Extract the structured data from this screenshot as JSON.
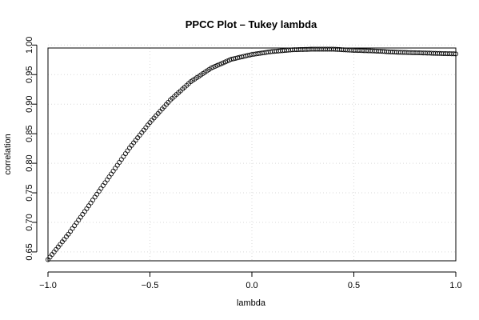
{
  "chart_data": {
    "type": "scatter",
    "title": "PPCC Plot – Tukey lambda",
    "xlabel": "lambda",
    "ylabel": "correlation",
    "xlim": [
      -1.0,
      1.0
    ],
    "ylim": [
      0.635,
      0.995
    ],
    "xticks": [
      -1.0,
      -0.5,
      0.0,
      0.5,
      1.0
    ],
    "xtick_labels": [
      "−1.0",
      "−0.5",
      "0.0",
      "0.5",
      "1.0"
    ],
    "yticks": [
      0.65,
      0.7,
      0.75,
      0.8,
      0.85,
      0.9,
      0.95,
      1.0
    ],
    "ytick_labels": [
      "0.65",
      "0.70",
      "0.75",
      "0.80",
      "0.85",
      "0.90",
      "0.95",
      "1.00"
    ],
    "grid": true,
    "marker": "open-circle",
    "series": [
      {
        "x": [
          -1.0,
          -0.9,
          -0.8,
          -0.7,
          -0.6,
          -0.5,
          -0.4,
          -0.3,
          -0.2,
          -0.1,
          0.0,
          0.1,
          0.2,
          0.3,
          0.4,
          0.5,
          0.6,
          0.7,
          0.8,
          0.9,
          1.0
        ],
        "y": [
          0.637,
          0.68,
          0.728,
          0.777,
          0.826,
          0.869,
          0.907,
          0.938,
          0.961,
          0.976,
          0.984,
          0.989,
          0.992,
          0.993,
          0.993,
          0.991,
          0.99,
          0.988,
          0.987,
          0.986,
          0.985
        ]
      }
    ]
  }
}
